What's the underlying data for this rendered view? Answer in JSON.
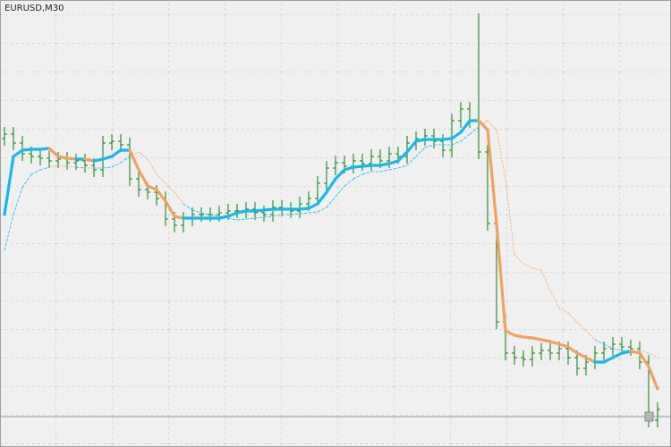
{
  "chart_data": {
    "type": "ohlc",
    "title": "EURUSD,M30",
    "color": "#0b7d0b",
    "background": "#f0f0f0",
    "grid": true,
    "ylim": [
      0,
      500
    ],
    "open": [
      345,
      350,
      340,
      328,
      325,
      323,
      320,
      322,
      318,
      320,
      315,
      310,
      340,
      342,
      338,
      300,
      288,
      285,
      278,
      255,
      248,
      255,
      260,
      260,
      260,
      262,
      264,
      264,
      266,
      262,
      260,
      268,
      266,
      264,
      272,
      278,
      295,
      312,
      318,
      314,
      320,
      317,
      325,
      320,
      328,
      325,
      340,
      345,
      348,
      342,
      332,
      365,
      378,
      365,
      330,
      250,
      140,
      105,
      100,
      98,
      105,
      108,
      105,
      110,
      100,
      88,
      95,
      105,
      110,
      115,
      112,
      110,
      95,
      30
    ],
    "high": [
      358,
      358,
      348,
      336,
      333,
      331,
      330,
      330,
      328,
      328,
      323,
      348,
      350,
      350,
      346,
      308,
      296,
      293,
      286,
      263,
      263,
      268,
      268,
      268,
      270,
      272,
      272,
      274,
      274,
      270,
      276,
      276,
      274,
      280,
      286,
      303,
      320,
      326,
      326,
      328,
      328,
      333,
      333,
      336,
      336,
      348,
      353,
      356,
      356,
      350,
      373,
      386,
      386,
      485,
      338,
      258,
      148,
      113,
      108,
      113,
      116,
      116,
      118,
      118,
      108,
      103,
      113,
      118,
      123,
      123,
      120,
      118,
      103,
      50
    ],
    "low": [
      337,
      332,
      320,
      317,
      315,
      312,
      312,
      310,
      310,
      307,
      302,
      302,
      332,
      330,
      292,
      280,
      277,
      270,
      247,
      240,
      240,
      247,
      252,
      252,
      252,
      254,
      256,
      256,
      254,
      252,
      252,
      258,
      256,
      256,
      264,
      270,
      287,
      304,
      306,
      306,
      309,
      309,
      312,
      312,
      317,
      317,
      332,
      337,
      334,
      324,
      324,
      357,
      357,
      322,
      242,
      132,
      97,
      92,
      90,
      90,
      97,
      97,
      97,
      92,
      80,
      80,
      87,
      97,
      102,
      104,
      102,
      87,
      22,
      22
    ],
    "close": [
      350,
      340,
      328,
      325,
      323,
      320,
      322,
      318,
      320,
      315,
      310,
      340,
      342,
      338,
      300,
      288,
      285,
      278,
      255,
      248,
      255,
      260,
      260,
      260,
      262,
      264,
      264,
      266,
      262,
      260,
      268,
      266,
      264,
      272,
      278,
      295,
      312,
      318,
      314,
      320,
      317,
      325,
      320,
      328,
      325,
      340,
      345,
      348,
      342,
      332,
      365,
      378,
      365,
      330,
      250,
      140,
      105,
      100,
      98,
      105,
      108,
      105,
      110,
      100,
      88,
      95,
      105,
      110,
      115,
      112,
      110,
      95,
      30,
      42
    ],
    "series": [
      {
        "color": "#17b7ef",
        "down_color": "#f4a15d",
        "values": [
          260,
          325,
          332,
          333,
          333,
          334,
          325,
          323,
          322,
          322,
          320,
          322,
          325,
          332,
          332,
          310,
          292,
          288,
          275,
          258,
          256,
          256,
          256,
          256,
          256,
          258,
          262,
          264,
          264,
          265,
          266,
          266,
          266,
          266,
          267,
          272,
          285,
          300,
          310,
          313,
          314,
          315,
          315,
          317,
          320,
          330,
          342,
          344,
          344,
          344,
          345,
          352,
          365,
          365,
          355,
          250,
          130,
          125,
          123,
          122,
          120,
          118,
          115,
          112,
          105,
          100,
          95,
          95,
          100,
          105,
          107,
          105,
          90,
          65
        ]
      },
      {
        "color": "#17b7ef",
        "down_color": "#f4a15d",
        "dashed": true,
        "values": [
          220,
          260,
          290,
          305,
          310,
          313,
          315,
          314,
          313,
          312,
          312,
          312,
          313,
          318,
          325,
          330,
          322,
          305,
          295,
          285,
          272,
          265,
          262,
          260,
          258,
          256,
          254,
          255,
          256,
          257,
          258,
          260,
          260,
          261,
          262,
          263,
          268,
          280,
          292,
          300,
          305,
          308,
          308,
          310,
          312,
          315,
          325,
          335,
          338,
          338,
          338,
          342,
          350,
          358,
          365,
          355,
          300,
          215,
          205,
          200,
          198,
          175,
          155,
          150,
          140,
          130,
          120,
          115,
          110,
          108,
          108,
          108,
          105,
          100
        ]
      }
    ],
    "price_line": 34,
    "price_line_color": "#8a9ab0"
  }
}
